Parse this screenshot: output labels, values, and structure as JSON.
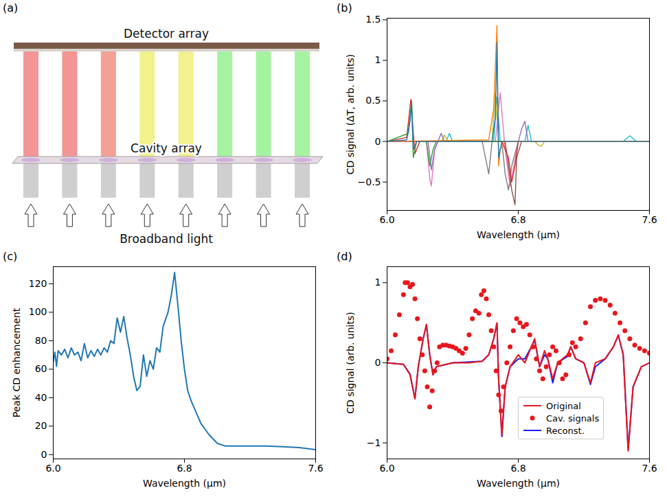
{
  "diagram": {
    "panel": "(a)",
    "labels": {
      "top": "Detector array",
      "middle": "Cavity array",
      "bottom": "Broadband light"
    },
    "beam_colors": [
      "#f07a7a",
      "#f07a7a",
      "#f08a7a",
      "#eeee70",
      "#eeee70",
      "#8ef08a",
      "#8ef08a",
      "#8ef08a"
    ]
  },
  "chart_data": [
    {
      "panel": "(b)",
      "type": "line",
      "x_label": "Wavelength (μm)",
      "y_label": "CD signal (ΔT, arb. units)",
      "xlim": [
        6.0,
        7.6
      ],
      "xticks": [
        {
          "value": 6.0,
          "label": "6.0"
        },
        {
          "value": 6.8,
          "label": "6.8"
        },
        {
          "value": 7.6,
          "label": "7.6"
        }
      ],
      "ylim": [
        -0.85,
        1.52
      ],
      "yticks": [
        -0.5,
        0,
        0.5,
        1,
        1.5
      ],
      "series": [
        {
          "color": "#1f77b4",
          "x": [
            6.0,
            6.12,
            6.14,
            6.15,
            6.16,
            6.18,
            6.64,
            6.66,
            6.67,
            6.68,
            6.7,
            7.6
          ],
          "values": [
            0,
            0.02,
            0.25,
            0.45,
            -0.1,
            0,
            0,
            0.3,
            1.22,
            -0.2,
            0,
            0
          ]
        },
        {
          "color": "#ff7f0e",
          "x": [
            6.0,
            6.62,
            6.65,
            6.67,
            6.68,
            6.69,
            6.72,
            7.6
          ],
          "values": [
            0,
            0.02,
            0.4,
            1.43,
            -0.3,
            -0.1,
            0,
            0
          ]
        },
        {
          "color": "#2ca02c",
          "x": [
            6.0,
            6.13,
            6.15,
            6.16,
            6.18,
            6.24,
            6.26,
            6.28,
            6.3,
            7.6
          ],
          "values": [
            0,
            0.1,
            0.5,
            -0.2,
            0,
            0,
            -0.3,
            -0.1,
            0,
            0
          ]
        },
        {
          "color": "#d62728",
          "x": [
            6.0,
            6.12,
            6.145,
            6.16,
            6.17,
            6.2,
            6.7,
            6.74,
            6.76,
            6.78,
            6.8,
            7.6
          ],
          "values": [
            0,
            0.05,
            0.52,
            0.1,
            -0.15,
            0,
            0,
            -0.2,
            -0.5,
            -0.3,
            0,
            0
          ]
        },
        {
          "color": "#9467bd",
          "x": [
            6.0,
            6.25,
            6.27,
            6.29,
            6.32,
            6.33,
            6.35,
            6.8,
            6.82,
            6.84,
            6.86,
            7.6
          ],
          "values": [
            0,
            0,
            -0.35,
            -0.1,
            0.05,
            0.1,
            0,
            0,
            0.15,
            0.25,
            0,
            0
          ]
        },
        {
          "color": "#8c564b",
          "x": [
            6.0,
            6.72,
            6.74,
            6.76,
            6.78,
            6.79,
            6.82,
            7.6
          ],
          "values": [
            0,
            0,
            -0.3,
            -0.6,
            -0.78,
            -0.2,
            0,
            0
          ]
        },
        {
          "color": "#e377c2",
          "x": [
            6.0,
            6.24,
            6.26,
            6.27,
            6.29,
            6.31,
            6.66,
            6.69,
            6.72,
            6.75,
            6.8,
            7.6
          ],
          "values": [
            0,
            0,
            -0.45,
            -0.55,
            -0.1,
            0,
            0,
            0.6,
            -0.1,
            -0.55,
            0,
            0
          ]
        },
        {
          "color": "#7f7f7f",
          "x": [
            6.0,
            6.58,
            6.6,
            6.62,
            6.64,
            6.7,
            6.72,
            6.74,
            6.76,
            6.8,
            7.6
          ],
          "values": [
            0,
            0,
            -0.2,
            -0.4,
            0,
            0,
            -0.4,
            -0.6,
            -0.3,
            0,
            0
          ]
        },
        {
          "color": "#bcbd22",
          "x": [
            6.0,
            6.33,
            6.35,
            6.37,
            6.64,
            6.66,
            6.68,
            6.9,
            6.92,
            6.94,
            6.96,
            7.6
          ],
          "values": [
            0,
            0,
            0.08,
            0,
            0,
            0.6,
            0,
            0,
            -0.04,
            -0.06,
            0,
            0
          ]
        },
        {
          "color": "#17becf",
          "x": [
            6.0,
            6.36,
            6.38,
            6.4,
            6.65,
            6.67,
            6.69,
            6.84,
            6.86,
            6.88,
            7.44,
            7.48,
            7.52,
            7.6
          ],
          "values": [
            0,
            0,
            0.1,
            0,
            0,
            0.55,
            0,
            0,
            0.2,
            0,
            0,
            0.07,
            0,
            0
          ]
        }
      ]
    },
    {
      "panel": "(c)",
      "type": "line",
      "x_label": "Wavelength (μm)",
      "y_label": "Peak CD enhancement",
      "xlim": [
        6.0,
        7.6
      ],
      "xticks": [
        {
          "value": 6.0,
          "label": "6.0"
        },
        {
          "value": 6.8,
          "label": "6.8"
        },
        {
          "value": 7.6,
          "label": "7.6"
        }
      ],
      "ylim": [
        -3,
        132
      ],
      "yticks": [
        0,
        20,
        40,
        60,
        80,
        100,
        120
      ],
      "series": [
        {
          "color": "#1f77b4",
          "x": [
            6.0,
            6.01,
            6.02,
            6.03,
            6.05,
            6.07,
            6.09,
            6.11,
            6.13,
            6.15,
            6.17,
            6.19,
            6.21,
            6.23,
            6.25,
            6.27,
            6.29,
            6.31,
            6.33,
            6.35,
            6.37,
            6.39,
            6.41,
            6.43,
            6.45,
            6.47,
            6.49,
            6.51,
            6.53,
            6.55,
            6.57,
            6.59,
            6.61,
            6.63,
            6.65,
            6.67,
            6.7,
            6.72,
            6.74,
            6.76,
            6.78,
            6.8,
            6.82,
            6.84,
            6.87,
            6.9,
            6.95,
            7.0,
            7.05,
            7.1,
            7.2,
            7.3,
            7.4,
            7.5,
            7.6
          ],
          "values": [
            65,
            72,
            62,
            73,
            70,
            74,
            68,
            75,
            70,
            72,
            66,
            78,
            68,
            73,
            69,
            74,
            70,
            75,
            72,
            80,
            78,
            96,
            86,
            97,
            82,
            70,
            55,
            45,
            48,
            70,
            55,
            66,
            60,
            75,
            72,
            90,
            100,
            112,
            128,
            105,
            80,
            60,
            45,
            38,
            30,
            22,
            14,
            8,
            6,
            6,
            6,
            6,
            5.5,
            5,
            3.5
          ]
        }
      ]
    },
    {
      "panel": "(d)",
      "type": "line",
      "x_label": "Wavelength (μm)",
      "y_label": "CD signal (arb. units)",
      "xlim": [
        6.0,
        7.6
      ],
      "xticks": [
        {
          "value": 6.0,
          "label": "6.0"
        },
        {
          "value": 6.8,
          "label": "6.8"
        },
        {
          "value": 7.6,
          "label": "7.6"
        }
      ],
      "ylim": [
        -1.2,
        1.2
      ],
      "yticks": [
        -1,
        0,
        1
      ],
      "legend": "lower right",
      "series": [
        {
          "name": "Original",
          "type": "line",
          "line_style": "solid",
          "color": "#e8161b",
          "x": [
            6.0,
            6.1,
            6.14,
            6.17,
            6.19,
            6.22,
            6.24,
            6.26,
            6.28,
            6.3,
            6.4,
            6.5,
            6.58,
            6.62,
            6.65,
            6.67,
            6.68,
            6.7,
            6.72,
            6.75,
            6.8,
            6.84,
            6.88,
            6.9,
            6.93,
            6.96,
            6.98,
            7.01,
            7.04,
            7.1,
            7.12,
            7.15,
            7.2,
            7.24,
            7.27,
            7.33,
            7.38,
            7.41,
            7.44,
            7.47,
            7.5,
            7.55,
            7.6
          ],
          "values": [
            0,
            -0.02,
            -0.15,
            -0.45,
            -0.05,
            0.3,
            0.48,
            0.1,
            -0.15,
            -0.05,
            0,
            0,
            0.02,
            0.1,
            0.3,
            0.5,
            -0.2,
            -0.9,
            -0.3,
            -0.05,
            0.1,
            0,
            0.2,
            0.3,
            -0.05,
            0.15,
            0.05,
            -0.2,
            0,
            0.1,
            0.2,
            0.05,
            0,
            -0.25,
            0,
            0.05,
            0.2,
            0.35,
            0.1,
            -1.1,
            -0.3,
            -0.05,
            0
          ]
        },
        {
          "name": "Cav. signals",
          "type": "scatter",
          "marker": "circle",
          "color": "#e8161b",
          "x": [
            6.0,
            6.025,
            6.05,
            6.075,
            6.1,
            6.11,
            6.125,
            6.14,
            6.155,
            6.17,
            6.185,
            6.2,
            6.215,
            6.23,
            6.245,
            6.26,
            6.275,
            6.29,
            6.305,
            6.32,
            6.34,
            6.36,
            6.38,
            6.4,
            6.42,
            6.44,
            6.46,
            6.48,
            6.5,
            6.52,
            6.54,
            6.56,
            6.575,
            6.59,
            6.605,
            6.62,
            6.635,
            6.65,
            6.665,
            6.68,
            6.695,
            6.71,
            6.73,
            6.75,
            6.77,
            6.79,
            6.81,
            6.83,
            6.85,
            6.87,
            6.89,
            6.91,
            6.93,
            6.95,
            6.97,
            6.99,
            7.01,
            7.03,
            7.05,
            7.07,
            7.09,
            7.11,
            7.13,
            7.15,
            7.18,
            7.21,
            7.24,
            7.27,
            7.3,
            7.33,
            7.36,
            7.39,
            7.42,
            7.45,
            7.48,
            7.51,
            7.54,
            7.57,
            7.6
          ],
          "values": [
            0.05,
            0.15,
            0.35,
            0.6,
            0.85,
            1.0,
            1.0,
            0.95,
            0.98,
            0.8,
            0.55,
            0.3,
            0.1,
            -0.1,
            -0.3,
            -0.55,
            -0.35,
            -0.1,
            0.0,
            0.2,
            0.22,
            0.22,
            0.21,
            0.2,
            0.18,
            0.15,
            0.12,
            0.18,
            0.35,
            0.55,
            0.65,
            0.62,
            0.85,
            0.9,
            0.8,
            0.6,
            0.4,
            0.2,
            -0.1,
            -0.4,
            -0.6,
            -0.3,
            0.0,
            0.2,
            0.4,
            0.55,
            0.5,
            0.45,
            0.48,
            0.35,
            0.2,
            0.05,
            -0.1,
            -0.2,
            -0.05,
            0.1,
            0.2,
            0.15,
            0.0,
            -0.2,
            -0.15,
            0.1,
            0.25,
            0.2,
            0.3,
            0.5,
            0.7,
            0.78,
            0.8,
            0.78,
            0.72,
            0.62,
            0.5,
            0.4,
            0.3,
            0.22,
            0.18,
            0.15,
            0.12
          ]
        },
        {
          "name": "Reconst.",
          "type": "line",
          "line_style": "solid",
          "color": "#1a1aff",
          "x": [
            6.0,
            6.1,
            6.14,
            6.17,
            6.19,
            6.22,
            6.24,
            6.26,
            6.28,
            6.3,
            6.4,
            6.5,
            6.58,
            6.62,
            6.65,
            6.67,
            6.68,
            6.7,
            6.72,
            6.75,
            6.8,
            6.84,
            6.88,
            6.9,
            6.93,
            6.96,
            6.98,
            7.01,
            7.04,
            7.1,
            7.12,
            7.15,
            7.2,
            7.24,
            7.27,
            7.33,
            7.38,
            7.41,
            7.44,
            7.47,
            7.5,
            7.55,
            7.6
          ],
          "values": [
            0,
            -0.02,
            -0.14,
            -0.45,
            -0.05,
            0.3,
            0.47,
            0.1,
            -0.15,
            -0.05,
            0,
            0.01,
            0.02,
            0.1,
            0.3,
            0.49,
            -0.2,
            -0.92,
            -0.3,
            -0.05,
            0.05,
            0.05,
            0.2,
            0.28,
            -0.05,
            0.1,
            0.05,
            -0.25,
            0,
            0.08,
            0.2,
            0.05,
            0,
            -0.27,
            -0.05,
            0.05,
            0.2,
            0.34,
            0.1,
            -1.08,
            -0.3,
            -0.05,
            0
          ]
        }
      ]
    }
  ]
}
